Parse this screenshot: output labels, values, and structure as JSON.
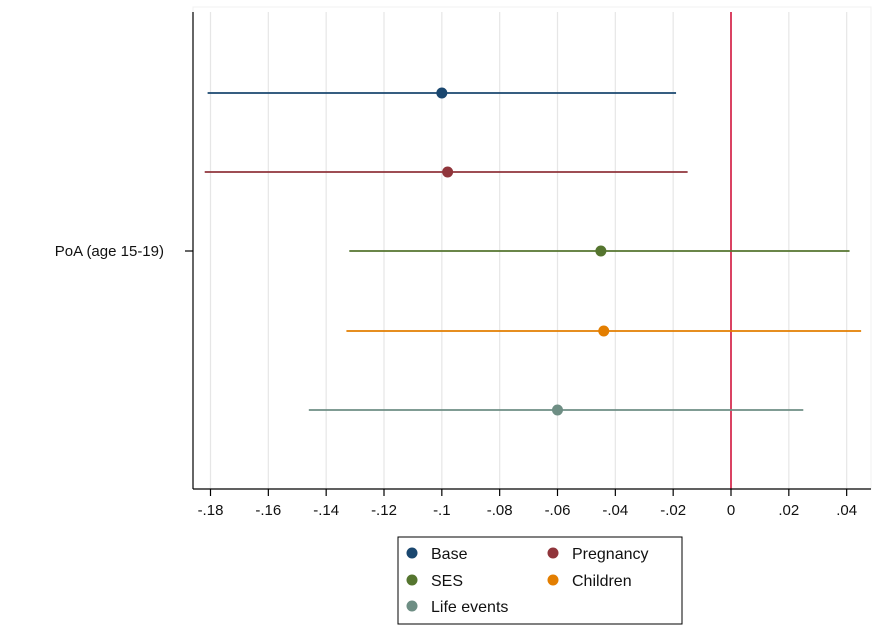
{
  "chart_data": {
    "type": "scatter",
    "subtype": "coefficient-plot-with-confidence-intervals",
    "title": "",
    "xlabel": "",
    "ylabel": "",
    "category": "PoA (age 15-19)",
    "xlim": [
      -0.185,
      0.047
    ],
    "xticks": [
      -0.18,
      -0.16,
      -0.14,
      -0.12,
      -0.1,
      -0.08,
      -0.06,
      -0.04,
      -0.02,
      0,
      0.02,
      0.04
    ],
    "xtick_labels": [
      "-.18",
      "-.16",
      "-.14",
      "-.12",
      "-.1",
      "-.08",
      "-.06",
      "-.04",
      "-.02",
      "0",
      ".02",
      ".04"
    ],
    "grid": "vertical",
    "reference_line": {
      "x": 0,
      "color": "#d1143c"
    },
    "legend_position": "bottom",
    "series": [
      {
        "name": "Base",
        "estimate": -0.1,
        "ci_low": -0.181,
        "ci_high": -0.019,
        "color": "#1a476f"
      },
      {
        "name": "Pregnancy",
        "estimate": -0.098,
        "ci_low": -0.182,
        "ci_high": -0.015,
        "color": "#90353b"
      },
      {
        "name": "SES",
        "estimate": -0.045,
        "ci_low": -0.132,
        "ci_high": 0.041,
        "color": "#55752f"
      },
      {
        "name": "Children",
        "estimate": -0.044,
        "ci_low": -0.133,
        "ci_high": 0.045,
        "color": "#e37e00"
      },
      {
        "name": "Life events",
        "estimate": -0.06,
        "ci_low": -0.146,
        "ci_high": 0.025,
        "color": "#6e8e84"
      }
    ]
  }
}
